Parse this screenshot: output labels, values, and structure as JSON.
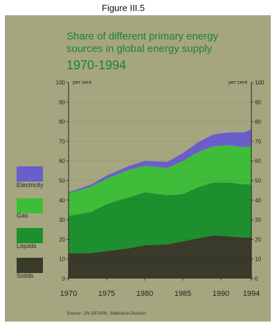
{
  "figure_label": "Figure III.5",
  "colors": {
    "panel": "#a5a680",
    "title": "#1f7f3a",
    "solids": "#3a3a2a",
    "liquids": "#1e8f2e",
    "gas": "#3fbd3a",
    "electricity": "#6a5ecc"
  },
  "chart_data": {
    "type": "area",
    "title": "Share of different primary energy sources in global energy supply",
    "subtitle": "1970-1994",
    "source": "Source: UN DESIPA, Statistical Division",
    "unit_left": "per cent",
    "unit_right": "per cent",
    "stacked": true,
    "x": [
      1970,
      1973,
      1975,
      1978,
      1980,
      1983,
      1985,
      1987,
      1989,
      1991,
      1993,
      1994
    ],
    "xticks": [
      "1970",
      "1975",
      "1980",
      "1985",
      "1990",
      "1994"
    ],
    "yticks": [
      "0",
      "10",
      "20",
      "30",
      "40",
      "50",
      "60",
      "70",
      "80",
      "90",
      "100"
    ],
    "ylim": [
      0,
      100
    ],
    "legend": [
      "Electricity",
      "Gas",
      "Liquids",
      "Solids"
    ],
    "series": [
      {
        "name": "Solids",
        "values": [
          13,
          13,
          14,
          15.5,
          17,
          17.5,
          19,
          20.5,
          22,
          21.5,
          21,
          21
        ]
      },
      {
        "name": "Liquids",
        "values": [
          19,
          21,
          24,
          26,
          27,
          25,
          24,
          26,
          27,
          27.5,
          27,
          27
        ]
      },
      {
        "name": "Gas",
        "values": [
          11.5,
          13,
          13,
          14,
          13.5,
          14,
          17,
          18,
          18.5,
          19,
          19,
          19.5
        ]
      },
      {
        "name": "Electricity",
        "values": [
          0.5,
          1,
          1.5,
          2,
          2.5,
          3,
          4,
          5,
          6,
          6.5,
          7.5,
          8.5
        ]
      }
    ]
  }
}
